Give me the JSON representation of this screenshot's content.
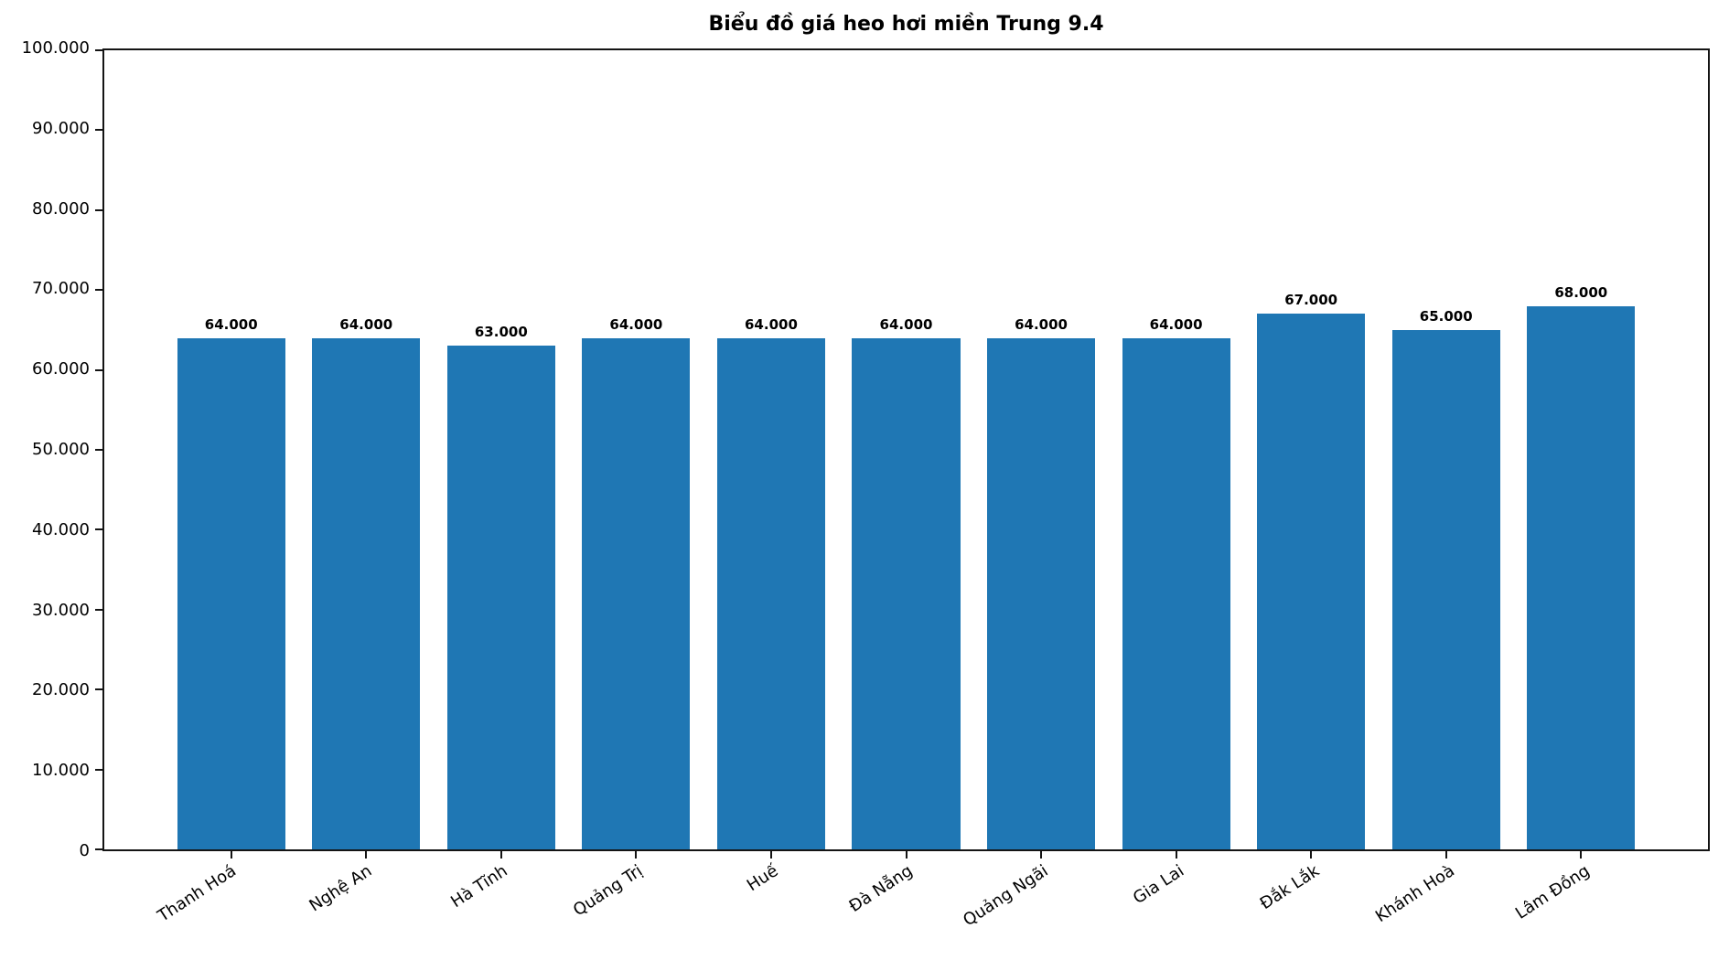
{
  "chart_data": {
    "type": "bar",
    "title": "Biểu đồ giá heo hơi miền Trung 9.4",
    "categories": [
      "Thanh Hoá",
      "Nghệ An",
      "Hà Tĩnh",
      "Quảng Trị",
      "Huế",
      "Đà Nẵng",
      "Quảng Ngãi",
      "Gia Lai",
      "Đắk Lắk",
      "Khánh Hoà",
      "Lâm Đồng"
    ],
    "values": [
      64000,
      64000,
      63000,
      64000,
      64000,
      64000,
      64000,
      64000,
      67000,
      65000,
      68000
    ],
    "bar_value_labels": [
      "64.000",
      "64.000",
      "63.000",
      "64.000",
      "64.000",
      "64.000",
      "64.000",
      "64.000",
      "67.000",
      "65.000",
      "68.000"
    ],
    "y_tick_values": [
      0,
      10000,
      20000,
      30000,
      40000,
      50000,
      60000,
      70000,
      80000,
      90000,
      100000
    ],
    "y_tick_labels": [
      "0",
      "10.000",
      "20.000",
      "30.000",
      "40.000",
      "50.000",
      "60.000",
      "70.000",
      "80.000",
      "90.000",
      "100.000"
    ],
    "ylim": [
      0,
      100000
    ],
    "xlabel": "",
    "ylabel": "",
    "grid": false,
    "legend_position": "none",
    "bar_color": "#1f77b4",
    "axis_color": "#141414",
    "text_color": "#000000",
    "x_tick_label_rotation_deg": 33
  }
}
